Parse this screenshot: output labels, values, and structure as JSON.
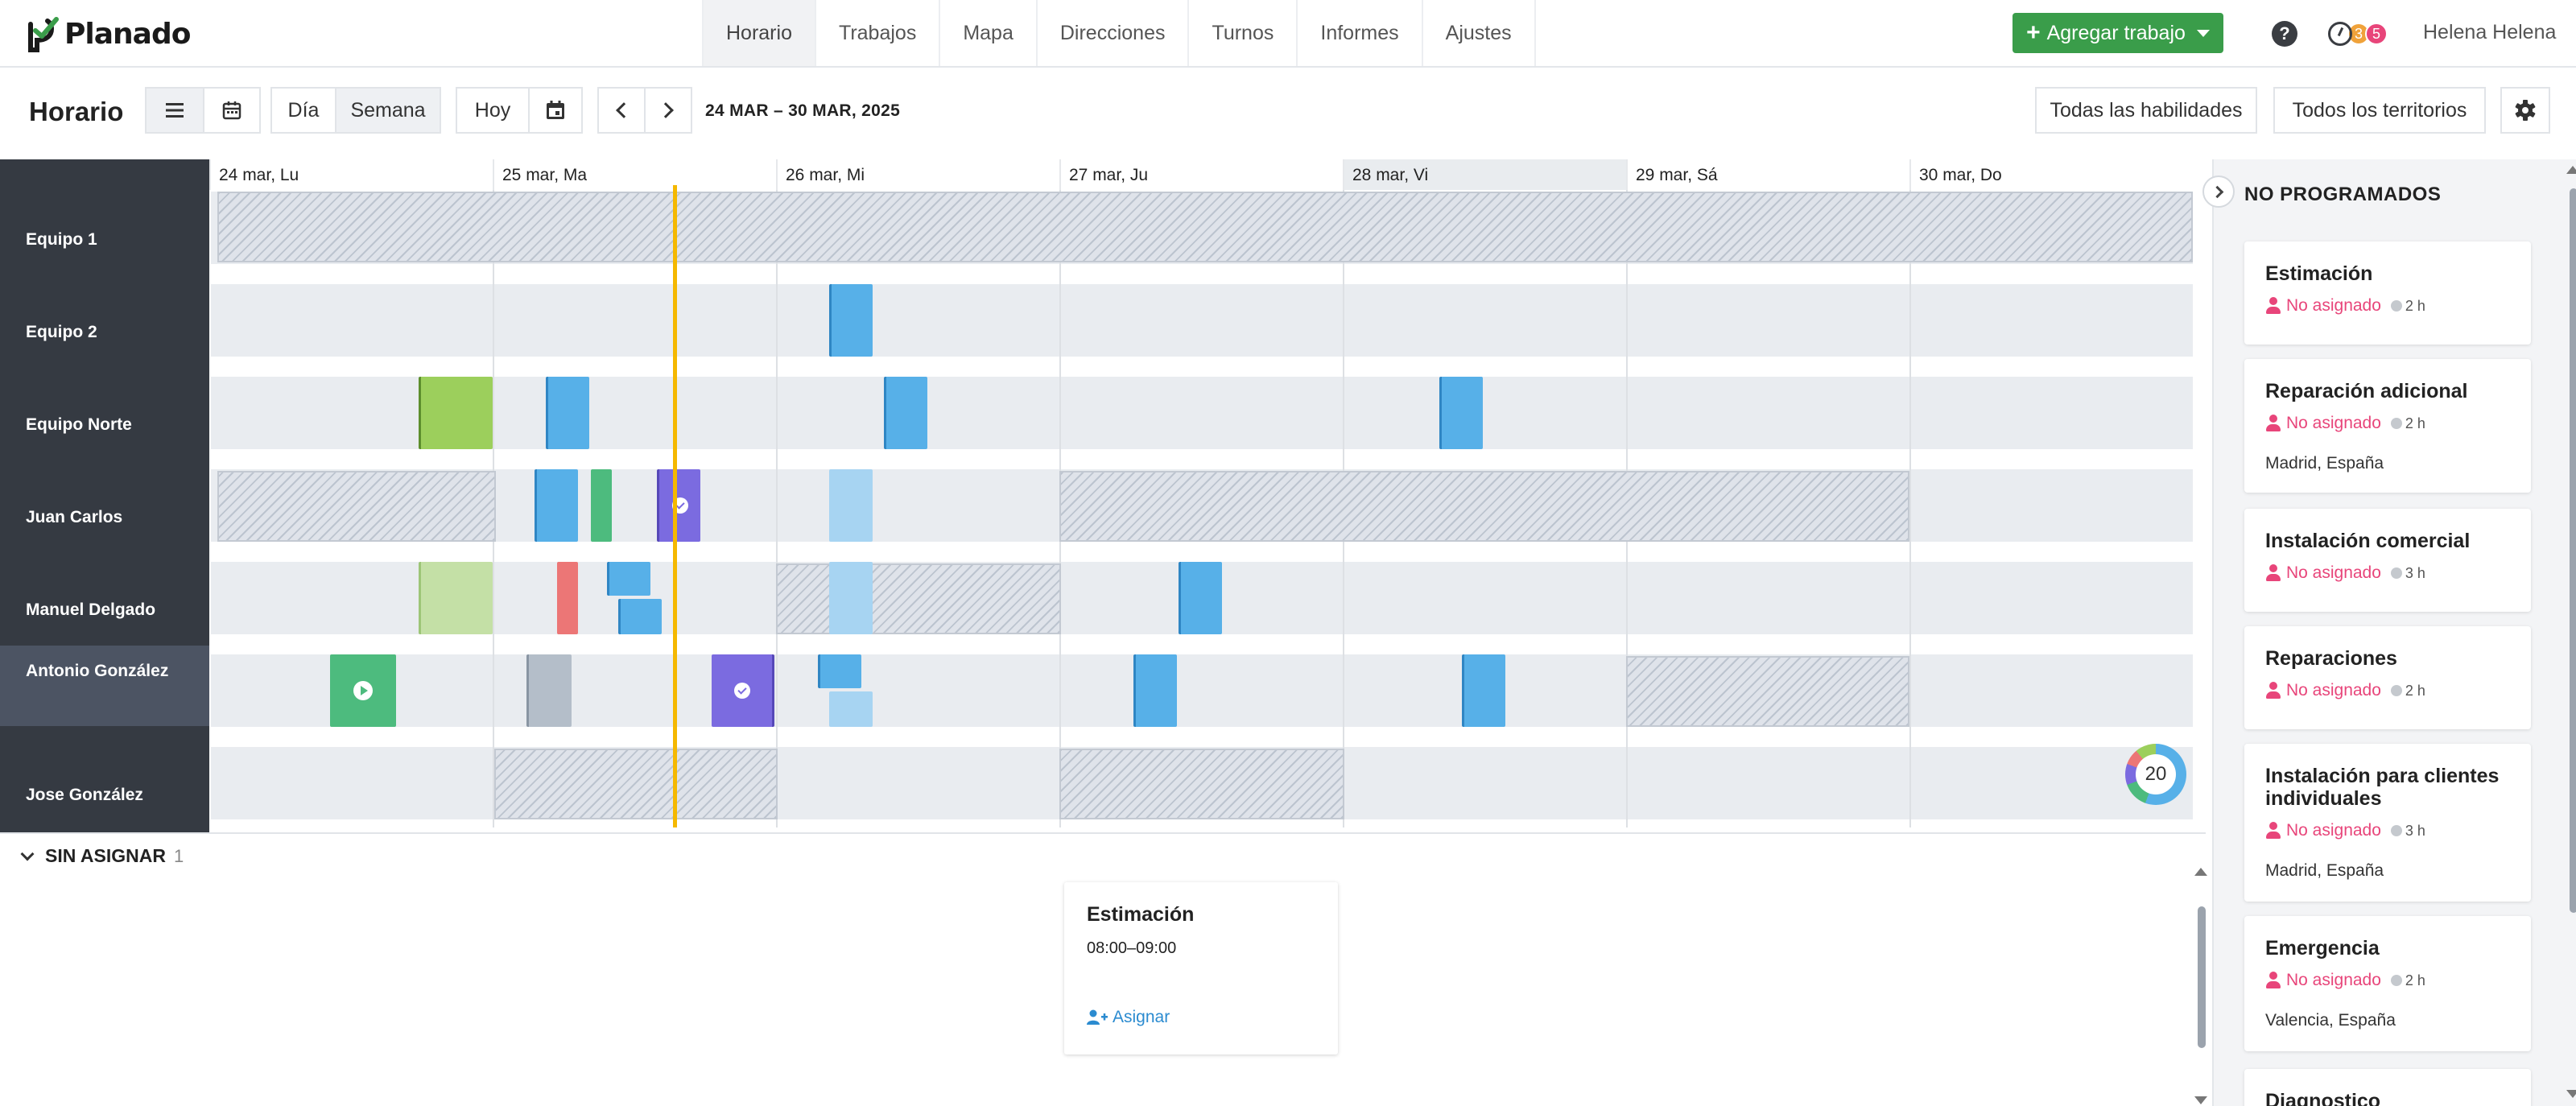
{
  "app": {
    "logo_text": "Planado",
    "nav": [
      "Horario",
      "Trabajos",
      "Mapa",
      "Direcciones",
      "Turnos",
      "Informes",
      "Ajustes"
    ],
    "active_nav": "Horario",
    "add_job_label": "Agregar trabajo",
    "help_label": "?",
    "badge_orange": "3",
    "badge_red": "5",
    "user_name": "Helena Helena"
  },
  "toolbar": {
    "title": "Horario",
    "view_day": "Día",
    "view_week": "Semana",
    "today": "Hoy",
    "date_range": "24 MAR – 30 MAR, 2025",
    "skills_filter": "Todas las habilidades",
    "territories_filter": "Todos los territorios"
  },
  "schedule": {
    "days": [
      "24 mar, Lu",
      "25 mar, Ma",
      "26 mar, Mi",
      "27 mar, Ju",
      "28 mar, Vi",
      "29 mar, Sá",
      "30 mar, Do"
    ],
    "highlighted_day": "28 mar, Vi",
    "resources": [
      "Equipo 1",
      "Equipo 2",
      "Equipo Norte",
      "Juan Carlos",
      "Manuel Delgado",
      "Antonio González",
      "Jose González"
    ],
    "selected_resource": "Antonio González",
    "counter": "20"
  },
  "unassigned": {
    "title": "SIN ASIGNAR",
    "count": "1",
    "card": {
      "title": "Estimación",
      "time": "08:00–09:00",
      "assign_label": "Asignar"
    }
  },
  "unscheduled": {
    "title": "NO PROGRAMADOS",
    "unassigned_label": "No asignado",
    "cards": [
      {
        "title": "Estimación",
        "duration": "2 h",
        "location": ""
      },
      {
        "title": "Reparación adicional",
        "duration": "2 h",
        "location": "Madrid, España"
      },
      {
        "title": "Instalación comercial",
        "duration": "3 h",
        "location": ""
      },
      {
        "title": "Reparaciones",
        "duration": "2 h",
        "location": ""
      },
      {
        "title": "Instalación para clientes individuales",
        "duration": "3 h",
        "location": "Madrid, España"
      },
      {
        "title": "Emergencia",
        "duration": "2 h",
        "location": "Valencia, España"
      },
      {
        "title": "Diagnostico",
        "duration": "",
        "location": ""
      }
    ]
  },
  "colors": {
    "brand_green": "#3a9d4a",
    "job_blue": "#57b0e8",
    "job_green": "#9ccf5c",
    "job_teal": "#4dbb7e",
    "job_purple": "#7b6be0",
    "job_red": "#ec7676",
    "now_line": "#f5b800",
    "warning_pink": "#e8457a"
  }
}
